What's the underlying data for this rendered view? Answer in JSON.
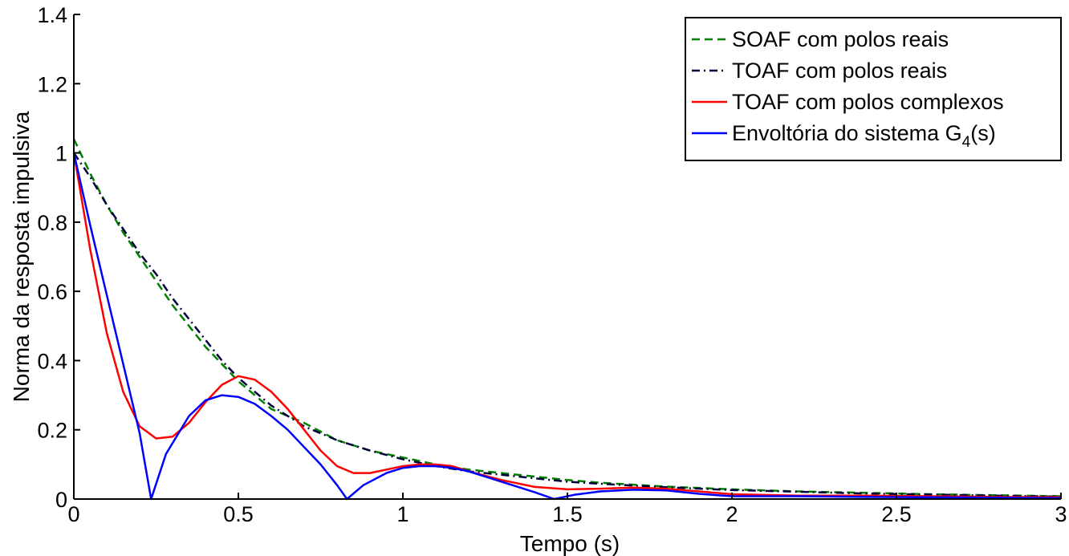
{
  "chart_data": {
    "type": "line",
    "xlabel": "Tempo (s)",
    "ylabel": "Norma da resposta impulsiva",
    "xlim": [
      0,
      3
    ],
    "ylim": [
      0,
      1.4
    ],
    "xticks": [
      0,
      0.5,
      1,
      1.5,
      2,
      2.5,
      3
    ],
    "yticks": [
      0,
      0.2,
      0.4,
      0.6,
      0.8,
      1,
      1.2,
      1.4
    ],
    "xtick_labels": [
      "0",
      "0.5",
      "1",
      "1.5",
      "2",
      "2.5",
      "3"
    ],
    "ytick_labels": [
      "0",
      "0.2",
      "0.4",
      "0.6",
      "0.8",
      "1",
      "1.2",
      "1.4"
    ],
    "grid": false,
    "legend_position": "top-right",
    "series": [
      {
        "name": "SOAF com polos reais",
        "color": "#007f00",
        "style": "dashed",
        "points": [
          [
            0,
            1.04
          ],
          [
            0.05,
            0.94
          ],
          [
            0.1,
            0.85
          ],
          [
            0.15,
            0.77
          ],
          [
            0.2,
            0.7
          ],
          [
            0.25,
            0.63
          ],
          [
            0.3,
            0.56
          ],
          [
            0.35,
            0.5
          ],
          [
            0.4,
            0.44
          ],
          [
            0.45,
            0.39
          ],
          [
            0.5,
            0.34
          ],
          [
            0.55,
            0.3
          ],
          [
            0.6,
            0.26
          ],
          [
            0.7,
            0.22
          ],
          [
            0.8,
            0.17
          ],
          [
            0.9,
            0.14
          ],
          [
            1.0,
            0.12
          ],
          [
            1.1,
            0.1
          ],
          [
            1.2,
            0.085
          ],
          [
            1.3,
            0.075
          ],
          [
            1.4,
            0.065
          ],
          [
            1.5,
            0.055
          ],
          [
            1.6,
            0.047
          ],
          [
            1.8,
            0.036
          ],
          [
            2.0,
            0.028
          ],
          [
            2.2,
            0.022
          ],
          [
            2.4,
            0.018
          ],
          [
            2.6,
            0.014
          ],
          [
            2.8,
            0.011
          ],
          [
            3.0,
            0.008
          ]
        ]
      },
      {
        "name": "TOAF com polos reais",
        "color": "#00003f",
        "style": "dashdot",
        "points": [
          [
            0,
            1.0
          ],
          [
            0.05,
            0.93
          ],
          [
            0.1,
            0.85
          ],
          [
            0.15,
            0.78
          ],
          [
            0.2,
            0.71
          ],
          [
            0.25,
            0.65
          ],
          [
            0.3,
            0.58
          ],
          [
            0.35,
            0.52
          ],
          [
            0.4,
            0.46
          ],
          [
            0.45,
            0.4
          ],
          [
            0.5,
            0.35
          ],
          [
            0.55,
            0.31
          ],
          [
            0.6,
            0.27
          ],
          [
            0.7,
            0.21
          ],
          [
            0.8,
            0.17
          ],
          [
            0.9,
            0.14
          ],
          [
            1.0,
            0.115
          ],
          [
            1.1,
            0.095
          ],
          [
            1.2,
            0.08
          ],
          [
            1.3,
            0.07
          ],
          [
            1.4,
            0.06
          ],
          [
            1.5,
            0.05
          ],
          [
            1.6,
            0.044
          ],
          [
            1.8,
            0.034
          ],
          [
            2.0,
            0.026
          ],
          [
            2.2,
            0.021
          ],
          [
            2.4,
            0.016
          ],
          [
            2.6,
            0.013
          ],
          [
            2.8,
            0.01
          ],
          [
            3.0,
            0.007
          ]
        ]
      },
      {
        "name": "TOAF com polos complexos",
        "color": "#ff0000",
        "style": "solid",
        "points": [
          [
            0,
            1.0
          ],
          [
            0.05,
            0.72
          ],
          [
            0.1,
            0.48
          ],
          [
            0.15,
            0.31
          ],
          [
            0.2,
            0.21
          ],
          [
            0.25,
            0.175
          ],
          [
            0.3,
            0.18
          ],
          [
            0.35,
            0.22
          ],
          [
            0.4,
            0.28
          ],
          [
            0.45,
            0.33
          ],
          [
            0.5,
            0.355
          ],
          [
            0.55,
            0.345
          ],
          [
            0.6,
            0.31
          ],
          [
            0.65,
            0.26
          ],
          [
            0.7,
            0.2
          ],
          [
            0.75,
            0.14
          ],
          [
            0.8,
            0.095
          ],
          [
            0.85,
            0.075
          ],
          [
            0.9,
            0.075
          ],
          [
            0.95,
            0.085
          ],
          [
            1.0,
            0.095
          ],
          [
            1.05,
            0.1
          ],
          [
            1.1,
            0.1
          ],
          [
            1.15,
            0.095
          ],
          [
            1.2,
            0.08
          ],
          [
            1.3,
            0.055
          ],
          [
            1.4,
            0.035
          ],
          [
            1.5,
            0.028
          ],
          [
            1.6,
            0.03
          ],
          [
            1.7,
            0.033
          ],
          [
            1.8,
            0.03
          ],
          [
            1.9,
            0.022
          ],
          [
            2.0,
            0.014
          ],
          [
            2.2,
            0.01
          ],
          [
            2.4,
            0.01
          ],
          [
            2.6,
            0.008
          ],
          [
            2.8,
            0.006
          ],
          [
            3.0,
            0.005
          ]
        ]
      },
      {
        "name": "Envoltória do sistema G",
        "name_subscript": "4",
        "name_suffix": "(s)",
        "color": "#0000ff",
        "style": "solid",
        "points": [
          [
            0,
            1.0
          ],
          [
            0.05,
            0.79
          ],
          [
            0.1,
            0.59
          ],
          [
            0.15,
            0.39
          ],
          [
            0.2,
            0.19
          ],
          [
            0.235,
            0.0
          ],
          [
            0.28,
            0.13
          ],
          [
            0.35,
            0.24
          ],
          [
            0.4,
            0.285
          ],
          [
            0.45,
            0.3
          ],
          [
            0.5,
            0.295
          ],
          [
            0.55,
            0.275
          ],
          [
            0.6,
            0.24
          ],
          [
            0.65,
            0.2
          ],
          [
            0.7,
            0.15
          ],
          [
            0.75,
            0.1
          ],
          [
            0.8,
            0.04
          ],
          [
            0.83,
            0.0
          ],
          [
            0.88,
            0.04
          ],
          [
            0.95,
            0.075
          ],
          [
            1.0,
            0.09
          ],
          [
            1.05,
            0.095
          ],
          [
            1.1,
            0.095
          ],
          [
            1.15,
            0.09
          ],
          [
            1.2,
            0.08
          ],
          [
            1.3,
            0.05
          ],
          [
            1.4,
            0.02
          ],
          [
            1.46,
            0.0
          ],
          [
            1.52,
            0.012
          ],
          [
            1.6,
            0.022
          ],
          [
            1.7,
            0.027
          ],
          [
            1.8,
            0.025
          ],
          [
            1.9,
            0.015
          ],
          [
            2.0,
            0.008
          ],
          [
            2.2,
            0.008
          ],
          [
            2.4,
            0.006
          ],
          [
            2.6,
            0.005
          ],
          [
            2.8,
            0.004
          ],
          [
            3.0,
            0.003
          ]
        ]
      }
    ]
  }
}
